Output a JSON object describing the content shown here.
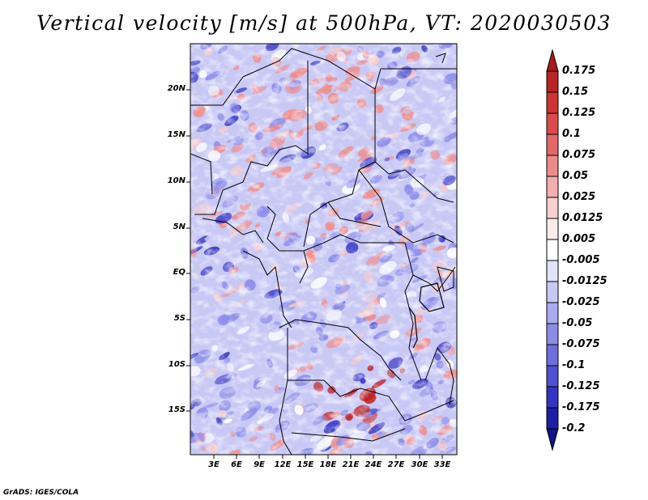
{
  "title": "Vertical velocity [m/s] at 500hPa, VT: 2020030503",
  "footer": "GrADS: IGES/COLA",
  "map": {
    "lon_labels": [
      "3E",
      "6E",
      "9E",
      "12E",
      "15E",
      "18E",
      "21E",
      "24E",
      "27E",
      "30E",
      "33E"
    ],
    "lat_labels": [
      "20N",
      "15N",
      "10N",
      "5N",
      "EQ",
      "5S",
      "10S",
      "15S"
    ],
    "field_colors": {
      "strong_up": "#3d3dc8",
      "up": "#8c8cea",
      "weak_up": "#c8c8f5",
      "neutral": "#ffffff",
      "weak_down": "#f6cccc",
      "down": "#ee8e8e",
      "strong_down": "#c02020"
    }
  },
  "colorbar": {
    "labels": [
      "0.175",
      "0.15",
      "0.125",
      "0.1",
      "0.075",
      "0.05",
      "0.025",
      "0.0125",
      "0.005",
      "-0.005",
      "-0.0125",
      "-0.025",
      "-0.05",
      "-0.075",
      "-0.1",
      "-0.125",
      "-0.175",
      "-0.2"
    ],
    "colors": [
      "#a51d1d",
      "#b92424",
      "#cd3434",
      "#dc4a4a",
      "#e46868",
      "#ec8a8a",
      "#f3aeae",
      "#f8d0d0",
      "#fcebeb",
      "#ffffff",
      "#e2e2fa",
      "#c8c8f4",
      "#aaaaee",
      "#8c8ce6",
      "#6e6edc",
      "#5050d0",
      "#3434c0",
      "#1e1ea5",
      "#12128a"
    ]
  }
}
